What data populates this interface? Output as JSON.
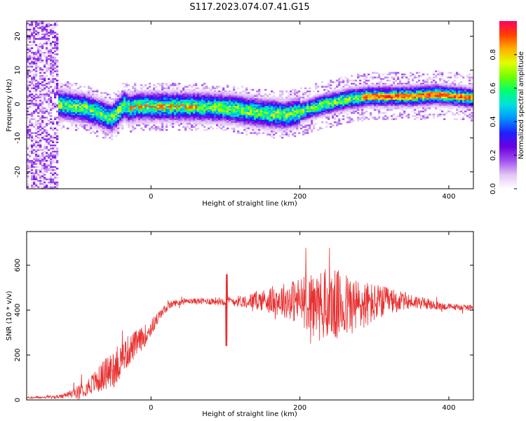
{
  "figure": {
    "title": "S117.2023.074.07.41.G15"
  },
  "chart_data": [
    {
      "type": "heatmap",
      "xlabel": "Height of straight line (km)",
      "ylabel": "Frequency (Hz)",
      "xlim": [
        -167,
        433
      ],
      "ylim": [
        -25,
        24.5
      ],
      "x_ticks": [
        0,
        200,
        400
      ],
      "y_ticks": [
        -20,
        -10,
        0,
        10,
        20
      ],
      "grid": false,
      "colorbar": {
        "label": "Normalized spectral amplitude",
        "ticks": [
          0.0,
          0.2,
          0.4,
          0.6,
          0.8
        ],
        "range": [
          0,
          1
        ],
        "colors": [
          "#ffffff",
          "#e3c6f4",
          "#a050f0",
          "#6a00e0",
          "#2020ff",
          "#0090ff",
          "#00e0e0",
          "#00ff70",
          "#70ff00",
          "#e0ff00",
          "#ffb000",
          "#ff4000",
          "#ff0060"
        ]
      },
      "ridge_x": [
        -120,
        -90,
        -70,
        -55,
        -45,
        -38,
        -30,
        -20,
        0,
        50,
        100,
        150,
        180,
        200,
        230,
        260,
        290,
        320,
        350,
        380,
        410,
        433
      ],
      "ridge_freq": [
        0.0,
        -1.0,
        -2.5,
        -4.0,
        -2.0,
        0.0,
        -1.0,
        -0.5,
        -0.5,
        -0.5,
        -1.0,
        -2.5,
        -3.0,
        -2.0,
        0.0,
        1.5,
        2.5,
        2.5,
        2.5,
        3.0,
        2.5,
        2.0
      ]
    },
    {
      "type": "line",
      "xlabel": "Height of straight line (km)",
      "ylabel": "SNR (10 * v/v)",
      "xlim": [
        -167,
        433
      ],
      "ylim": [
        0,
        750
      ],
      "x_ticks": [
        0,
        200,
        400
      ],
      "y_ticks": [
        0,
        200,
        400,
        600
      ],
      "grid": false,
      "series": [
        {
          "color": "#e83030",
          "x": [
            -167,
            -140,
            -120,
            -110,
            -100,
            -90,
            -80,
            -70,
            -60,
            -50,
            -40,
            -30,
            -20,
            -10,
            0,
            10,
            20,
            30,
            50,
            70,
            100,
            130,
            150,
            180,
            200,
            220,
            240,
            260,
            280,
            300,
            320,
            340,
            360,
            380,
            400,
            433
          ],
          "y": [
            10,
            12,
            15,
            25,
            35,
            50,
            70,
            90,
            120,
            140,
            180,
            220,
            250,
            280,
            320,
            370,
            410,
            430,
            440,
            440,
            440,
            440,
            445,
            445,
            440,
            430,
            420,
            420,
            420,
            430,
            440,
            440,
            435,
            420,
            415,
            410
          ],
          "spread": [
            5,
            6,
            8,
            15,
            25,
            35,
            45,
            60,
            80,
            90,
            80,
            70,
            60,
            50,
            40,
            25,
            18,
            15,
            12,
            15,
            20,
            30,
            50,
            80,
            110,
            140,
            170,
            150,
            120,
            90,
            60,
            40,
            30,
            20,
            15,
            12
          ]
        }
      ]
    }
  ]
}
